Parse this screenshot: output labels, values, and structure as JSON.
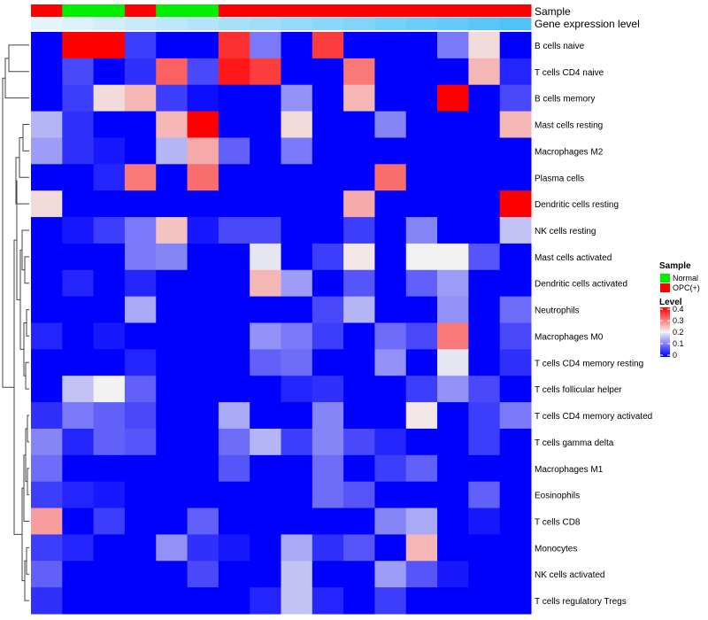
{
  "chart_data": {
    "type": "heatmap",
    "annotation_titles": [
      "Sample",
      "Gene expression level"
    ],
    "rows": [
      "B cells naive",
      "T cells CD4 naive",
      "B cells memory",
      "Mast cells resting",
      "Macrophages M2",
      "Plasma cells",
      "Dendritic cells resting",
      "NK cells resting",
      "Mast cells activated",
      "Dendritic cells activated",
      "Neutrophils",
      "Macrophages M0",
      "T cells CD4 memory resting",
      "T cells follicular helper",
      "T cells CD4 memory activated",
      "T cells gamma delta",
      "Macrophages M1",
      "Eosinophils",
      "T cells CD8",
      "Monocytes",
      "NK cells activated",
      "T cells regulatory  Tregs"
    ],
    "sample_groups": [
      "OPC(+)",
      "Normal",
      "Normal",
      "OPC(+)",
      "Normal",
      "Normal",
      "OPC(+)",
      "OPC(+)",
      "OPC(+)",
      "OPC(+)",
      "OPC(+)",
      "OPC(+)",
      "OPC(+)",
      "OPC(+)",
      "OPC(+)",
      "OPC(+)"
    ],
    "expression_level": [
      0.0,
      0.06,
      0.13,
      0.2,
      0.26,
      0.33,
      0.4,
      0.46,
      0.53,
      0.6,
      0.66,
      0.73,
      0.8,
      0.86,
      0.93,
      1.0
    ],
    "values": [
      [
        0.0,
        0.4,
        0.4,
        0.05,
        0.0,
        0.0,
        0.36,
        0.1,
        0.0,
        0.35,
        0.0,
        0.0,
        0.0,
        0.1,
        0.22,
        0.0
      ],
      [
        0.0,
        0.06,
        0.0,
        0.04,
        0.32,
        0.06,
        0.38,
        0.35,
        0.0,
        0.0,
        0.3,
        0.0,
        0.0,
        0.0,
        0.25,
        0.03
      ],
      [
        0.0,
        0.05,
        0.22,
        0.25,
        0.05,
        0.01,
        0.0,
        0.0,
        0.12,
        0.0,
        0.25,
        0.0,
        0.0,
        0.4,
        0.0,
        0.06
      ],
      [
        0.15,
        0.04,
        0.0,
        0.0,
        0.25,
        0.4,
        0.0,
        0.0,
        0.22,
        0.0,
        0.0,
        0.11,
        0.0,
        0.0,
        0.0,
        0.25
      ],
      [
        0.13,
        0.04,
        0.02,
        0.0,
        0.15,
        0.26,
        0.08,
        0.0,
        0.1,
        0.0,
        0.0,
        0.0,
        0.0,
        0.0,
        0.0,
        0.0
      ],
      [
        0.0,
        0.0,
        0.03,
        0.3,
        0.0,
        0.31,
        0.0,
        0.0,
        0.0,
        0.0,
        0.0,
        0.31,
        0.0,
        0.0,
        0.0,
        0.0
      ],
      [
        0.22,
        0.0,
        0.0,
        0.0,
        0.0,
        0.0,
        0.0,
        0.0,
        0.0,
        0.0,
        0.26,
        0.0,
        0.0,
        0.0,
        0.0,
        0.4
      ],
      [
        0.0,
        0.02,
        0.05,
        0.1,
        0.24,
        0.02,
        0.06,
        0.06,
        0.0,
        0.0,
        0.05,
        0.0,
        0.11,
        0.0,
        0.0,
        0.16
      ],
      [
        0.0,
        0.0,
        0.0,
        0.1,
        0.11,
        0.0,
        0.0,
        0.19,
        0.0,
        0.05,
        0.21,
        0.0,
        0.2,
        0.2,
        0.07,
        0.0
      ],
      [
        0.0,
        0.03,
        0.0,
        0.03,
        0.0,
        0.0,
        0.0,
        0.25,
        0.13,
        0.0,
        0.07,
        0.0,
        0.08,
        0.13,
        0.0,
        0.0
      ],
      [
        0.0,
        0.0,
        0.0,
        0.14,
        0.0,
        0.0,
        0.0,
        0.0,
        0.0,
        0.06,
        0.15,
        0.0,
        0.0,
        0.12,
        0.0,
        0.09
      ],
      [
        0.03,
        0.0,
        0.02,
        0.0,
        0.0,
        0.0,
        0.0,
        0.12,
        0.1,
        0.05,
        0.0,
        0.09,
        0.06,
        0.3,
        0.0,
        0.06
      ],
      [
        0.0,
        0.0,
        0.0,
        0.03,
        0.0,
        0.0,
        0.0,
        0.08,
        0.09,
        0.0,
        0.0,
        0.12,
        0.0,
        0.19,
        0.0,
        0.04
      ],
      [
        0.0,
        0.16,
        0.2,
        0.08,
        0.0,
        0.0,
        0.0,
        0.0,
        0.03,
        0.04,
        0.0,
        0.0,
        0.05,
        0.12,
        0.06,
        0.0
      ],
      [
        0.04,
        0.1,
        0.08,
        0.06,
        0.0,
        0.0,
        0.14,
        0.0,
        0.0,
        0.11,
        0.0,
        0.0,
        0.21,
        0.0,
        0.05,
        0.1
      ],
      [
        0.11,
        0.03,
        0.08,
        0.07,
        0.0,
        0.0,
        0.09,
        0.15,
        0.05,
        0.11,
        0.06,
        0.03,
        0.0,
        0.0,
        0.05,
        0.0
      ],
      [
        0.09,
        0.0,
        0.0,
        0.0,
        0.0,
        0.0,
        0.07,
        0.0,
        0.0,
        0.09,
        0.0,
        0.05,
        0.08,
        0.0,
        0.0,
        0.0
      ],
      [
        0.05,
        0.03,
        0.02,
        0.0,
        0.0,
        0.0,
        0.0,
        0.0,
        0.0,
        0.09,
        0.07,
        0.0,
        0.0,
        0.0,
        0.08,
        0.0
      ],
      [
        0.27,
        0.0,
        0.05,
        0.0,
        0.0,
        0.08,
        0.0,
        0.0,
        0.0,
        0.0,
        0.0,
        0.11,
        0.14,
        0.0,
        0.02,
        0.0
      ],
      [
        0.05,
        0.03,
        0.0,
        0.0,
        0.12,
        0.04,
        0.02,
        0.0,
        0.14,
        0.04,
        0.07,
        0.0,
        0.25,
        0.0,
        0.0,
        0.0
      ],
      [
        0.08,
        0.0,
        0.0,
        0.0,
        0.0,
        0.06,
        0.0,
        0.0,
        0.16,
        0.0,
        0.0,
        0.13,
        0.07,
        0.02,
        0.0,
        0.0
      ],
      [
        0.04,
        0.0,
        0.0,
        0.0,
        0.0,
        0.0,
        0.0,
        0.03,
        0.16,
        0.03,
        0.0,
        0.05,
        0.0,
        0.0,
        0.0,
        0.0
      ]
    ],
    "color_scale": {
      "min": 0,
      "mid": 0.2,
      "max": 0.4,
      "low": "#0000FF",
      "midColor": "#F2F2F2",
      "high": "#FF0000"
    },
    "legend": {
      "sample_title": "Sample",
      "sample_items": [
        {
          "label": "Normal",
          "color": "#00EE00"
        },
        {
          "label": "OPC(+)",
          "color": "#FF0000"
        }
      ],
      "level_title": "Level",
      "level_ticks": [
        "0.4",
        "0.3",
        "0.2",
        "0.1",
        "0"
      ],
      "position": "right"
    },
    "annotation_colors": {
      "level_low": "#E4F4FB",
      "level_high": "#4FC3F7"
    },
    "dendrogram": "rows"
  }
}
